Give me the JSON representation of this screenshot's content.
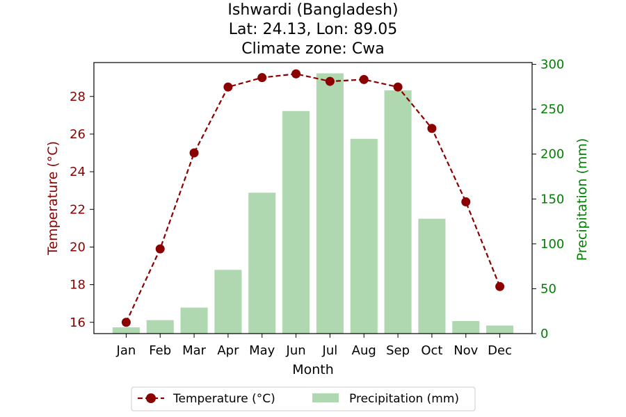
{
  "chart_data": {
    "type": "bar+line",
    "title_lines": [
      "Ishwardi (Bangladesh)",
      "Lat: 24.13, Lon: 89.05",
      "Climate zone: Cwa"
    ],
    "xlabel": "Month",
    "ylabel_left": "Temperature (°C)",
    "ylabel_right": "Precipitation (mm)",
    "categories": [
      "Jan",
      "Feb",
      "Mar",
      "Apr",
      "May",
      "Jun",
      "Jul",
      "Aug",
      "Sep",
      "Oct",
      "Nov",
      "Dec"
    ],
    "temperature": [
      16.0,
      19.9,
      25.0,
      28.5,
      29.0,
      29.2,
      28.8,
      28.9,
      28.5,
      26.3,
      22.4,
      17.9
    ],
    "precipitation": [
      7,
      15,
      29,
      71,
      157,
      248,
      290,
      217,
      271,
      128,
      14,
      9
    ],
    "ylim_left": [
      15.4,
      29.8
    ],
    "ylim_right": [
      0,
      302
    ],
    "yticks_left": [
      16,
      18,
      20,
      22,
      24,
      26,
      28
    ],
    "yticks_right": [
      0,
      50,
      100,
      150,
      200,
      250,
      300
    ],
    "temperature_color": "#8b0000",
    "precipitation_color": "#b0d8b0",
    "right_axis_color": "#008000",
    "legend": [
      {
        "label": "Temperature (°C)",
        "kind": "line"
      },
      {
        "label": "Precipitation (mm)",
        "kind": "bar"
      }
    ],
    "legend_position": "bottom-center"
  }
}
